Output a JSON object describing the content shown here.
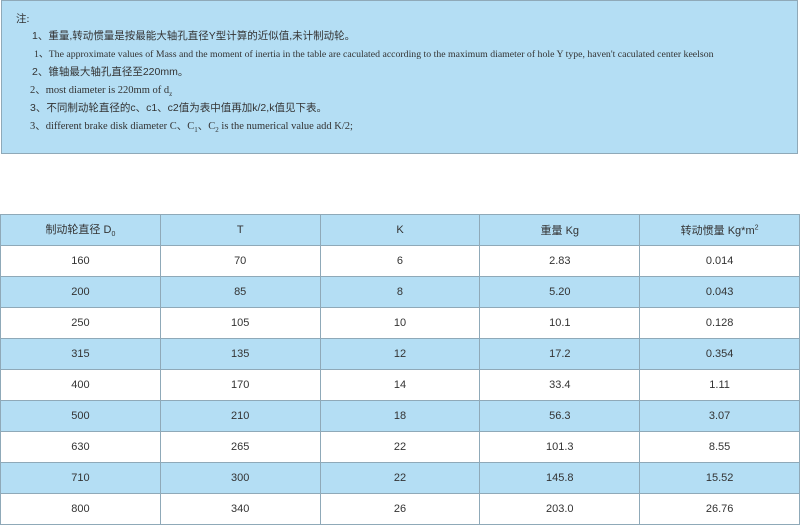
{
  "notes": {
    "label": "注:",
    "lines": [
      "1、重量,转动惯量是按最能大轴孔直径Y型计算的近似值,未计制动轮。",
      "1、The approximate values of Mass and the moment of inertia in the table are caculated according to the maximum diameter of hole Y type, haven't caculated center keelson",
      "2、锥轴最大轴孔直径至220mm。",
      "2、most diameter is 220mm of d",
      "3、不同制动轮直径的c、c1、c2值为表中值再加k/2,k值见下表。",
      "3、different brake disk diameter C、C",
      "、C",
      "is the numerical value add K/2;"
    ],
    "subs": [
      "z",
      "1",
      "2"
    ]
  },
  "table": {
    "headers": [
      "制动轮直径 D",
      "T",
      "K",
      "重量 Kg",
      "转动惯量 Kg*m"
    ],
    "header_sub": "0",
    "header_sup": "2",
    "rows": [
      [
        "160",
        "70",
        "6",
        "2.83",
        "0.014"
      ],
      [
        "200",
        "85",
        "8",
        "5.20",
        "0.043"
      ],
      [
        "250",
        "105",
        "10",
        "10.1",
        "0.128"
      ],
      [
        "315",
        "135",
        "12",
        "17.2",
        "0.354"
      ],
      [
        "400",
        "170",
        "14",
        "33.4",
        "1.11"
      ],
      [
        "500",
        "210",
        "18",
        "56.3",
        "3.07"
      ],
      [
        "630",
        "265",
        "22",
        "101.3",
        "8.55"
      ],
      [
        "710",
        "300",
        "22",
        "145.8",
        "15.52"
      ],
      [
        "800",
        "340",
        "26",
        "203.0",
        "26.76"
      ]
    ]
  },
  "colors": {
    "accent": "#b4def4",
    "border": "#8fa9b8"
  }
}
